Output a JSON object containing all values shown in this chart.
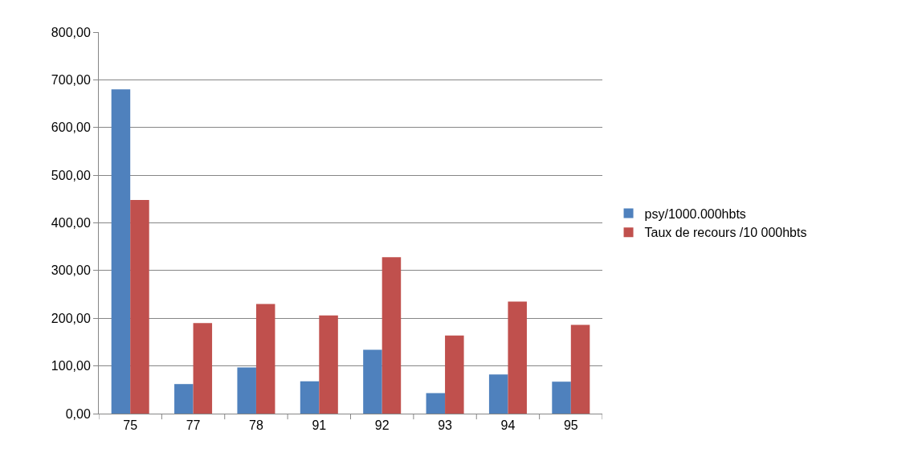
{
  "chart_data": {
    "type": "bar",
    "categories": [
      "75",
      "77",
      "78",
      "91",
      "92",
      "93",
      "94",
      "95"
    ],
    "series": [
      {
        "name": "psy/1000.000hbts",
        "color": "#4f81bd",
        "values": [
          680,
          62,
          97,
          68,
          134,
          43,
          82,
          67
        ]
      },
      {
        "name": "Taux de recours /10 000hbts",
        "color": "#c0504d",
        "values": [
          448,
          190,
          230,
          206,
          328,
          164,
          235,
          186
        ]
      }
    ],
    "ylim": [
      0,
      800
    ],
    "yticks": [
      {
        "value": 0,
        "label": "0,00"
      },
      {
        "value": 100,
        "label": "100,00"
      },
      {
        "value": 200,
        "label": "200,00"
      },
      {
        "value": 300,
        "label": "300,00"
      },
      {
        "value": 400,
        "label": "400,00"
      },
      {
        "value": 500,
        "label": "500,00"
      },
      {
        "value": 600,
        "label": "600,00"
      },
      {
        "value": 700,
        "label": "700,00"
      },
      {
        "value": 800,
        "label": "800,00"
      }
    ],
    "grid": "y",
    "legend": "right"
  }
}
